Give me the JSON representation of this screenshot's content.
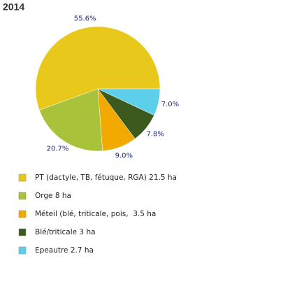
{
  "chart_data": {
    "type": "pie",
    "title": "2014",
    "categories": [
      "PT (dactyle, TB, fétuque, RGA) 21.5 ha",
      "Orge 8 ha",
      "Méteil (blé, triticale, pois,  3.5 ha",
      "Blé/triticale 3 ha",
      "Epeautre 2.7 ha"
    ],
    "values": [
      55.6,
      20.7,
      9.0,
      7.8,
      7.0
    ],
    "value_labels": [
      "55.6%",
      "20.7%",
      "9.0%",
      "7.8%",
      "7.0%"
    ],
    "colors": [
      "#e8c81a",
      "#a8c23a",
      "#f2a900",
      "#3d5a1e",
      "#5dcfea"
    ]
  }
}
